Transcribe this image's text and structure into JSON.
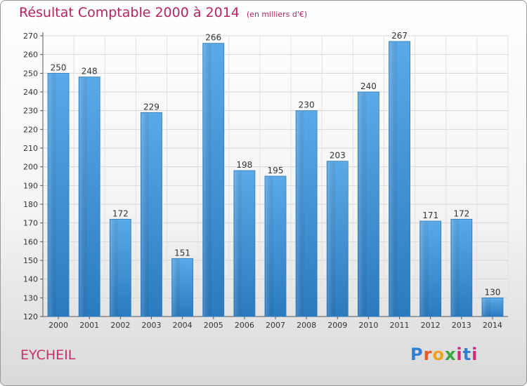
{
  "header": {
    "title": "Résultat Comptable 2000 à 2014",
    "subtitle": "(en milliers d'€)"
  },
  "footer": {
    "commune": "EYCHEIL",
    "logo_text": "Proxiti"
  },
  "colors": {
    "title": "#b5245e",
    "bar_light": "#5aaae8",
    "bar_dark": "#2a7abf",
    "grid": "#d6d6d6"
  },
  "chart_data": {
    "type": "bar",
    "title": "Résultat Comptable 2000 à 2014",
    "subtitle": "(en milliers d'€)",
    "xlabel": "",
    "ylabel": "",
    "categories": [
      "2000",
      "2001",
      "2002",
      "2003",
      "2004",
      "2005",
      "2006",
      "2007",
      "2008",
      "2009",
      "2010",
      "2011",
      "2012",
      "2013",
      "2014"
    ],
    "values": [
      250,
      248,
      172,
      229,
      151,
      266,
      198,
      195,
      230,
      203,
      240,
      267,
      171,
      172,
      130
    ],
    "ylim": [
      120,
      270
    ],
    "yticks": [
      120,
      130,
      140,
      150,
      160,
      170,
      180,
      190,
      200,
      210,
      220,
      230,
      240,
      250,
      260,
      270
    ],
    "grid": true,
    "legend": "none"
  }
}
